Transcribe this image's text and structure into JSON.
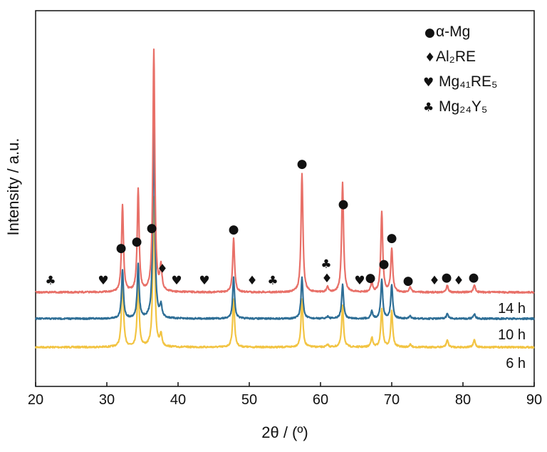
{
  "chart_data": {
    "type": "line",
    "xlabel": "2θ / (º)",
    "ylabel": "Intensity / a.u.",
    "xlim": [
      20,
      90
    ],
    "x_ticks": [
      20,
      30,
      40,
      50,
      60,
      70,
      80,
      90
    ],
    "y_ticks_shown": false,
    "grid": false,
    "legend_position": "top-right",
    "legend": [
      {
        "symbol_icon": "circle",
        "symbol": "●",
        "label": "α-Mg"
      },
      {
        "symbol_icon": "diamond",
        "symbol": "♦",
        "label": "Al₂RE"
      },
      {
        "symbol_icon": "heart",
        "symbol": "♥",
        "label": "Mg₄₁RE₅"
      },
      {
        "symbol_icon": "club",
        "symbol": "♣",
        "label": "Mg₂₄Y₅"
      }
    ],
    "series": [
      {
        "name": "14 h",
        "color": "#E87068",
        "offset": 2,
        "peaks": [
          {
            "x": 32.2,
            "h": 0.36
          },
          {
            "x": 34.4,
            "h": 0.42
          },
          {
            "x": 36.6,
            "h": 1.0
          },
          {
            "x": 37.6,
            "h": 0.1
          },
          {
            "x": 47.8,
            "h": 0.22
          },
          {
            "x": 57.4,
            "h": 0.49
          },
          {
            "x": 63.1,
            "h": 0.45
          },
          {
            "x": 67.2,
            "h": 0.04
          },
          {
            "x": 68.6,
            "h": 0.33
          },
          {
            "x": 70.0,
            "h": 0.18
          },
          {
            "x": 72.6,
            "h": 0.02
          },
          {
            "x": 77.8,
            "h": 0.03
          },
          {
            "x": 81.6,
            "h": 0.03
          },
          {
            "x": 61.0,
            "h": 0.02
          }
        ]
      },
      {
        "name": "10 h",
        "color": "#2E6E96",
        "offset": 1,
        "peaks": [
          {
            "x": 32.2,
            "h": 0.2
          },
          {
            "x": 34.4,
            "h": 0.22
          },
          {
            "x": 36.6,
            "h": 0.81
          },
          {
            "x": 37.6,
            "h": 0.05
          },
          {
            "x": 47.8,
            "h": 0.17
          },
          {
            "x": 57.4,
            "h": 0.17
          },
          {
            "x": 63.1,
            "h": 0.14
          },
          {
            "x": 67.2,
            "h": 0.03
          },
          {
            "x": 68.6,
            "h": 0.16
          },
          {
            "x": 70.0,
            "h": 0.14
          },
          {
            "x": 72.6,
            "h": 0.01
          },
          {
            "x": 77.8,
            "h": 0.02
          },
          {
            "x": 81.6,
            "h": 0.02
          },
          {
            "x": 61.0,
            "h": 0.01
          }
        ]
      },
      {
        "name": "6 h",
        "color": "#F2C443",
        "offset": 0,
        "peaks": [
          {
            "x": 32.2,
            "h": 0.3
          },
          {
            "x": 34.4,
            "h": 0.28
          },
          {
            "x": 36.6,
            "h": 0.62
          },
          {
            "x": 37.6,
            "h": 0.05
          },
          {
            "x": 47.8,
            "h": 0.2
          },
          {
            "x": 57.4,
            "h": 0.2
          },
          {
            "x": 63.1,
            "h": 0.17
          },
          {
            "x": 67.2,
            "h": 0.04
          },
          {
            "x": 68.6,
            "h": 0.16
          },
          {
            "x": 70.0,
            "h": 0.15
          },
          {
            "x": 72.6,
            "h": 0.01
          },
          {
            "x": 77.8,
            "h": 0.03
          },
          {
            "x": 81.6,
            "h": 0.03
          },
          {
            "x": 61.0,
            "h": 0.01
          }
        ]
      }
    ],
    "phase_markers": [
      {
        "x": 36.3,
        "symbol": "●",
        "phase": "α-Mg"
      },
      {
        "x": 32.0,
        "symbol": "●",
        "phase": "α-Mg"
      },
      {
        "x": 34.2,
        "symbol": "●",
        "phase": "α-Mg"
      },
      {
        "x": 47.8,
        "symbol": "●",
        "phase": "α-Mg"
      },
      {
        "x": 57.4,
        "symbol": "●",
        "phase": "α-Mg"
      },
      {
        "x": 63.2,
        "symbol": "●",
        "phase": "α-Mg"
      },
      {
        "x": 68.9,
        "symbol": "●",
        "phase": "α-Mg"
      },
      {
        "x": 70.0,
        "symbol": "●",
        "phase": "α-Mg"
      },
      {
        "x": 67.0,
        "symbol": "●",
        "phase": "α-Mg"
      },
      {
        "x": 72.3,
        "symbol": "●",
        "phase": "α-Mg"
      },
      {
        "x": 77.7,
        "symbol": "●",
        "phase": "α-Mg"
      },
      {
        "x": 81.5,
        "symbol": "●",
        "phase": "α-Mg"
      },
      {
        "x": 37.8,
        "symbol": "♦",
        "phase": "Al₂RE"
      },
      {
        "x": 50.4,
        "symbol": "♦",
        "phase": "Al₂RE"
      },
      {
        "x": 60.9,
        "symbol": "♦",
        "phase": "Al₂RE"
      },
      {
        "x": 76.0,
        "symbol": "♦",
        "phase": "Al₂RE"
      },
      {
        "x": 79.4,
        "symbol": "♦",
        "phase": "Al₂RE"
      },
      {
        "x": 29.5,
        "symbol": "♥",
        "phase": "Mg₄₁RE₅"
      },
      {
        "x": 39.8,
        "symbol": "♥",
        "phase": "Mg₄₁RE₅"
      },
      {
        "x": 43.7,
        "symbol": "♥",
        "phase": "Mg₄₁RE₅"
      },
      {
        "x": 65.5,
        "symbol": "♥",
        "phase": "Mg₄₁RE₅"
      },
      {
        "x": 22.1,
        "symbol": "♣",
        "phase": "Mg₂₄Y₅"
      },
      {
        "x": 53.3,
        "symbol": "♣",
        "phase": "Mg₂₄Y₅"
      },
      {
        "x": 60.8,
        "symbol": "♣",
        "phase": "Mg₂₄Y₅"
      }
    ]
  }
}
